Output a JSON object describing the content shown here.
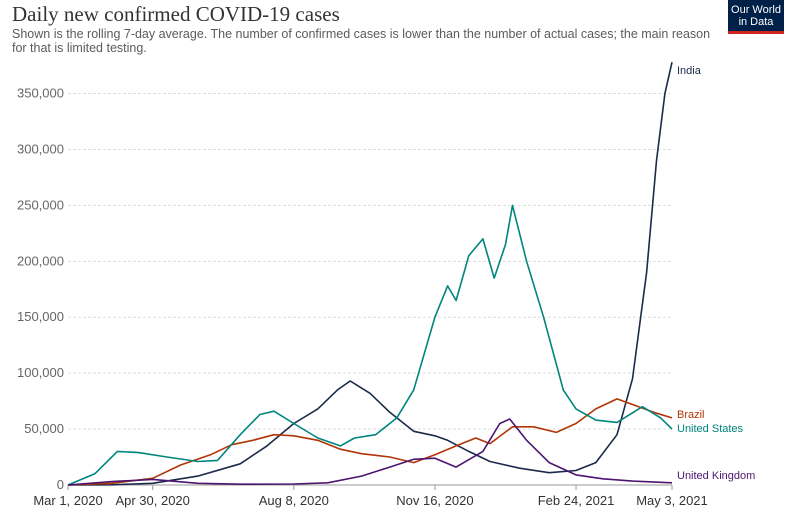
{
  "header": {
    "title": "Daily new confirmed COVID-19 cases",
    "subtitle": "Shown is the rolling 7-day average. The number of confirmed cases is lower than the number of actual cases; the main reason for that is limited testing."
  },
  "logo": {
    "line1": "Our World",
    "line2": "in Data",
    "bg": "#002147",
    "accent": "#ce261e"
  },
  "chart_data": {
    "type": "line",
    "title": "Daily new confirmed COVID-19 cases",
    "xlabel": "",
    "ylabel": "",
    "x_ticks": [
      "Mar 1, 2020",
      "Apr 30, 2020",
      "Aug 8, 2020",
      "Nov 16, 2020",
      "Feb 24, 2021",
      "May 3, 2021"
    ],
    "y_ticks": [
      "0",
      "50,000",
      "100,000",
      "150,000",
      "200,000",
      "250,000",
      "300,000",
      "350,000"
    ],
    "ylim": [
      0,
      380000
    ],
    "xlim": [
      "2020-03-01",
      "2021-05-03"
    ],
    "grid": "horizontal dashed",
    "legend": "inline labels at right end of lines",
    "series": [
      {
        "name": "India",
        "color": "#1b2a4a",
        "points": [
          [
            "2020-03-01",
            0
          ],
          [
            "2020-04-01",
            200
          ],
          [
            "2020-04-30",
            1500
          ],
          [
            "2020-06-01",
            8000
          ],
          [
            "2020-07-01",
            19000
          ],
          [
            "2020-07-20",
            35000
          ],
          [
            "2020-08-08",
            55000
          ],
          [
            "2020-08-25",
            68000
          ],
          [
            "2020-09-08",
            85000
          ],
          [
            "2020-09-17",
            93000
          ],
          [
            "2020-10-01",
            82000
          ],
          [
            "2020-10-15",
            65000
          ],
          [
            "2020-11-01",
            48000
          ],
          [
            "2020-11-16",
            44000
          ],
          [
            "2020-11-25",
            40000
          ],
          [
            "2020-12-10",
            30000
          ],
          [
            "2020-12-25",
            21000
          ],
          [
            "2021-01-15",
            15000
          ],
          [
            "2021-02-05",
            11000
          ],
          [
            "2021-02-24",
            13000
          ],
          [
            "2021-03-10",
            20000
          ],
          [
            "2021-03-25",
            45000
          ],
          [
            "2021-04-05",
            95000
          ],
          [
            "2021-04-15",
            190000
          ],
          [
            "2021-04-22",
            290000
          ],
          [
            "2021-04-28",
            350000
          ],
          [
            "2021-05-03",
            378000
          ]
        ]
      },
      {
        "name": "Brazil",
        "color": "#b13507",
        "points": [
          [
            "2020-03-01",
            0
          ],
          [
            "2020-04-01",
            1500
          ],
          [
            "2020-04-30",
            6000
          ],
          [
            "2020-05-20",
            18000
          ],
          [
            "2020-06-10",
            27000
          ],
          [
            "2020-06-25",
            36000
          ],
          [
            "2020-07-10",
            40000
          ],
          [
            "2020-07-25",
            45000
          ],
          [
            "2020-08-08",
            44000
          ],
          [
            "2020-08-25",
            40000
          ],
          [
            "2020-09-10",
            32000
          ],
          [
            "2020-09-25",
            28000
          ],
          [
            "2020-10-15",
            25000
          ],
          [
            "2020-11-01",
            20000
          ],
          [
            "2020-11-16",
            27000
          ],
          [
            "2020-12-01",
            35000
          ],
          [
            "2020-12-15",
            42000
          ],
          [
            "2020-12-25",
            37000
          ],
          [
            "2021-01-10",
            52000
          ],
          [
            "2021-01-25",
            52000
          ],
          [
            "2021-02-10",
            47000
          ],
          [
            "2021-02-24",
            55000
          ],
          [
            "2021-03-10",
            68000
          ],
          [
            "2021-03-25",
            77000
          ],
          [
            "2021-04-05",
            72000
          ],
          [
            "2021-04-20",
            65000
          ],
          [
            "2021-05-03",
            60000
          ]
        ]
      },
      {
        "name": "United States",
        "color": "#00847e",
        "points": [
          [
            "2020-03-01",
            0
          ],
          [
            "2020-03-20",
            10000
          ],
          [
            "2020-04-05",
            30000
          ],
          [
            "2020-04-20",
            29000
          ],
          [
            "2020-05-10",
            25000
          ],
          [
            "2020-06-01",
            21000
          ],
          [
            "2020-06-15",
            22000
          ],
          [
            "2020-07-01",
            45000
          ],
          [
            "2020-07-15",
            63000
          ],
          [
            "2020-07-25",
            66000
          ],
          [
            "2020-08-08",
            55000
          ],
          [
            "2020-08-25",
            42000
          ],
          [
            "2020-09-10",
            35000
          ],
          [
            "2020-09-20",
            42000
          ],
          [
            "2020-10-05",
            45000
          ],
          [
            "2020-10-20",
            60000
          ],
          [
            "2020-11-01",
            85000
          ],
          [
            "2020-11-16",
            150000
          ],
          [
            "2020-11-25",
            178000
          ],
          [
            "2020-12-01",
            165000
          ],
          [
            "2020-12-10",
            205000
          ],
          [
            "2020-12-20",
            220000
          ],
          [
            "2020-12-28",
            185000
          ],
          [
            "2021-01-05",
            215000
          ],
          [
            "2021-01-10",
            250000
          ],
          [
            "2021-01-20",
            200000
          ],
          [
            "2021-02-01",
            150000
          ],
          [
            "2021-02-15",
            85000
          ],
          [
            "2021-02-24",
            68000
          ],
          [
            "2021-03-10",
            58000
          ],
          [
            "2021-03-25",
            56000
          ],
          [
            "2021-04-12",
            70000
          ],
          [
            "2021-04-25",
            60000
          ],
          [
            "2021-05-03",
            50000
          ]
        ]
      },
      {
        "name": "United Kingdom",
        "color": "#4c156f",
        "points": [
          [
            "2020-03-01",
            0
          ],
          [
            "2020-04-01",
            3000
          ],
          [
            "2020-04-30",
            5000
          ],
          [
            "2020-06-01",
            1500
          ],
          [
            "2020-07-01",
            700
          ],
          [
            "2020-08-08",
            900
          ],
          [
            "2020-09-01",
            2000
          ],
          [
            "2020-09-25",
            8000
          ],
          [
            "2020-10-15",
            16000
          ],
          [
            "2020-11-01",
            23000
          ],
          [
            "2020-11-16",
            24000
          ],
          [
            "2020-12-01",
            16000
          ],
          [
            "2020-12-20",
            30000
          ],
          [
            "2021-01-01",
            55000
          ],
          [
            "2021-01-08",
            59000
          ],
          [
            "2021-01-20",
            40000
          ],
          [
            "2021-02-05",
            20000
          ],
          [
            "2021-02-24",
            9000
          ],
          [
            "2021-03-15",
            5500
          ],
          [
            "2021-04-05",
            3500
          ],
          [
            "2021-05-03",
            2000
          ]
        ]
      }
    ]
  }
}
